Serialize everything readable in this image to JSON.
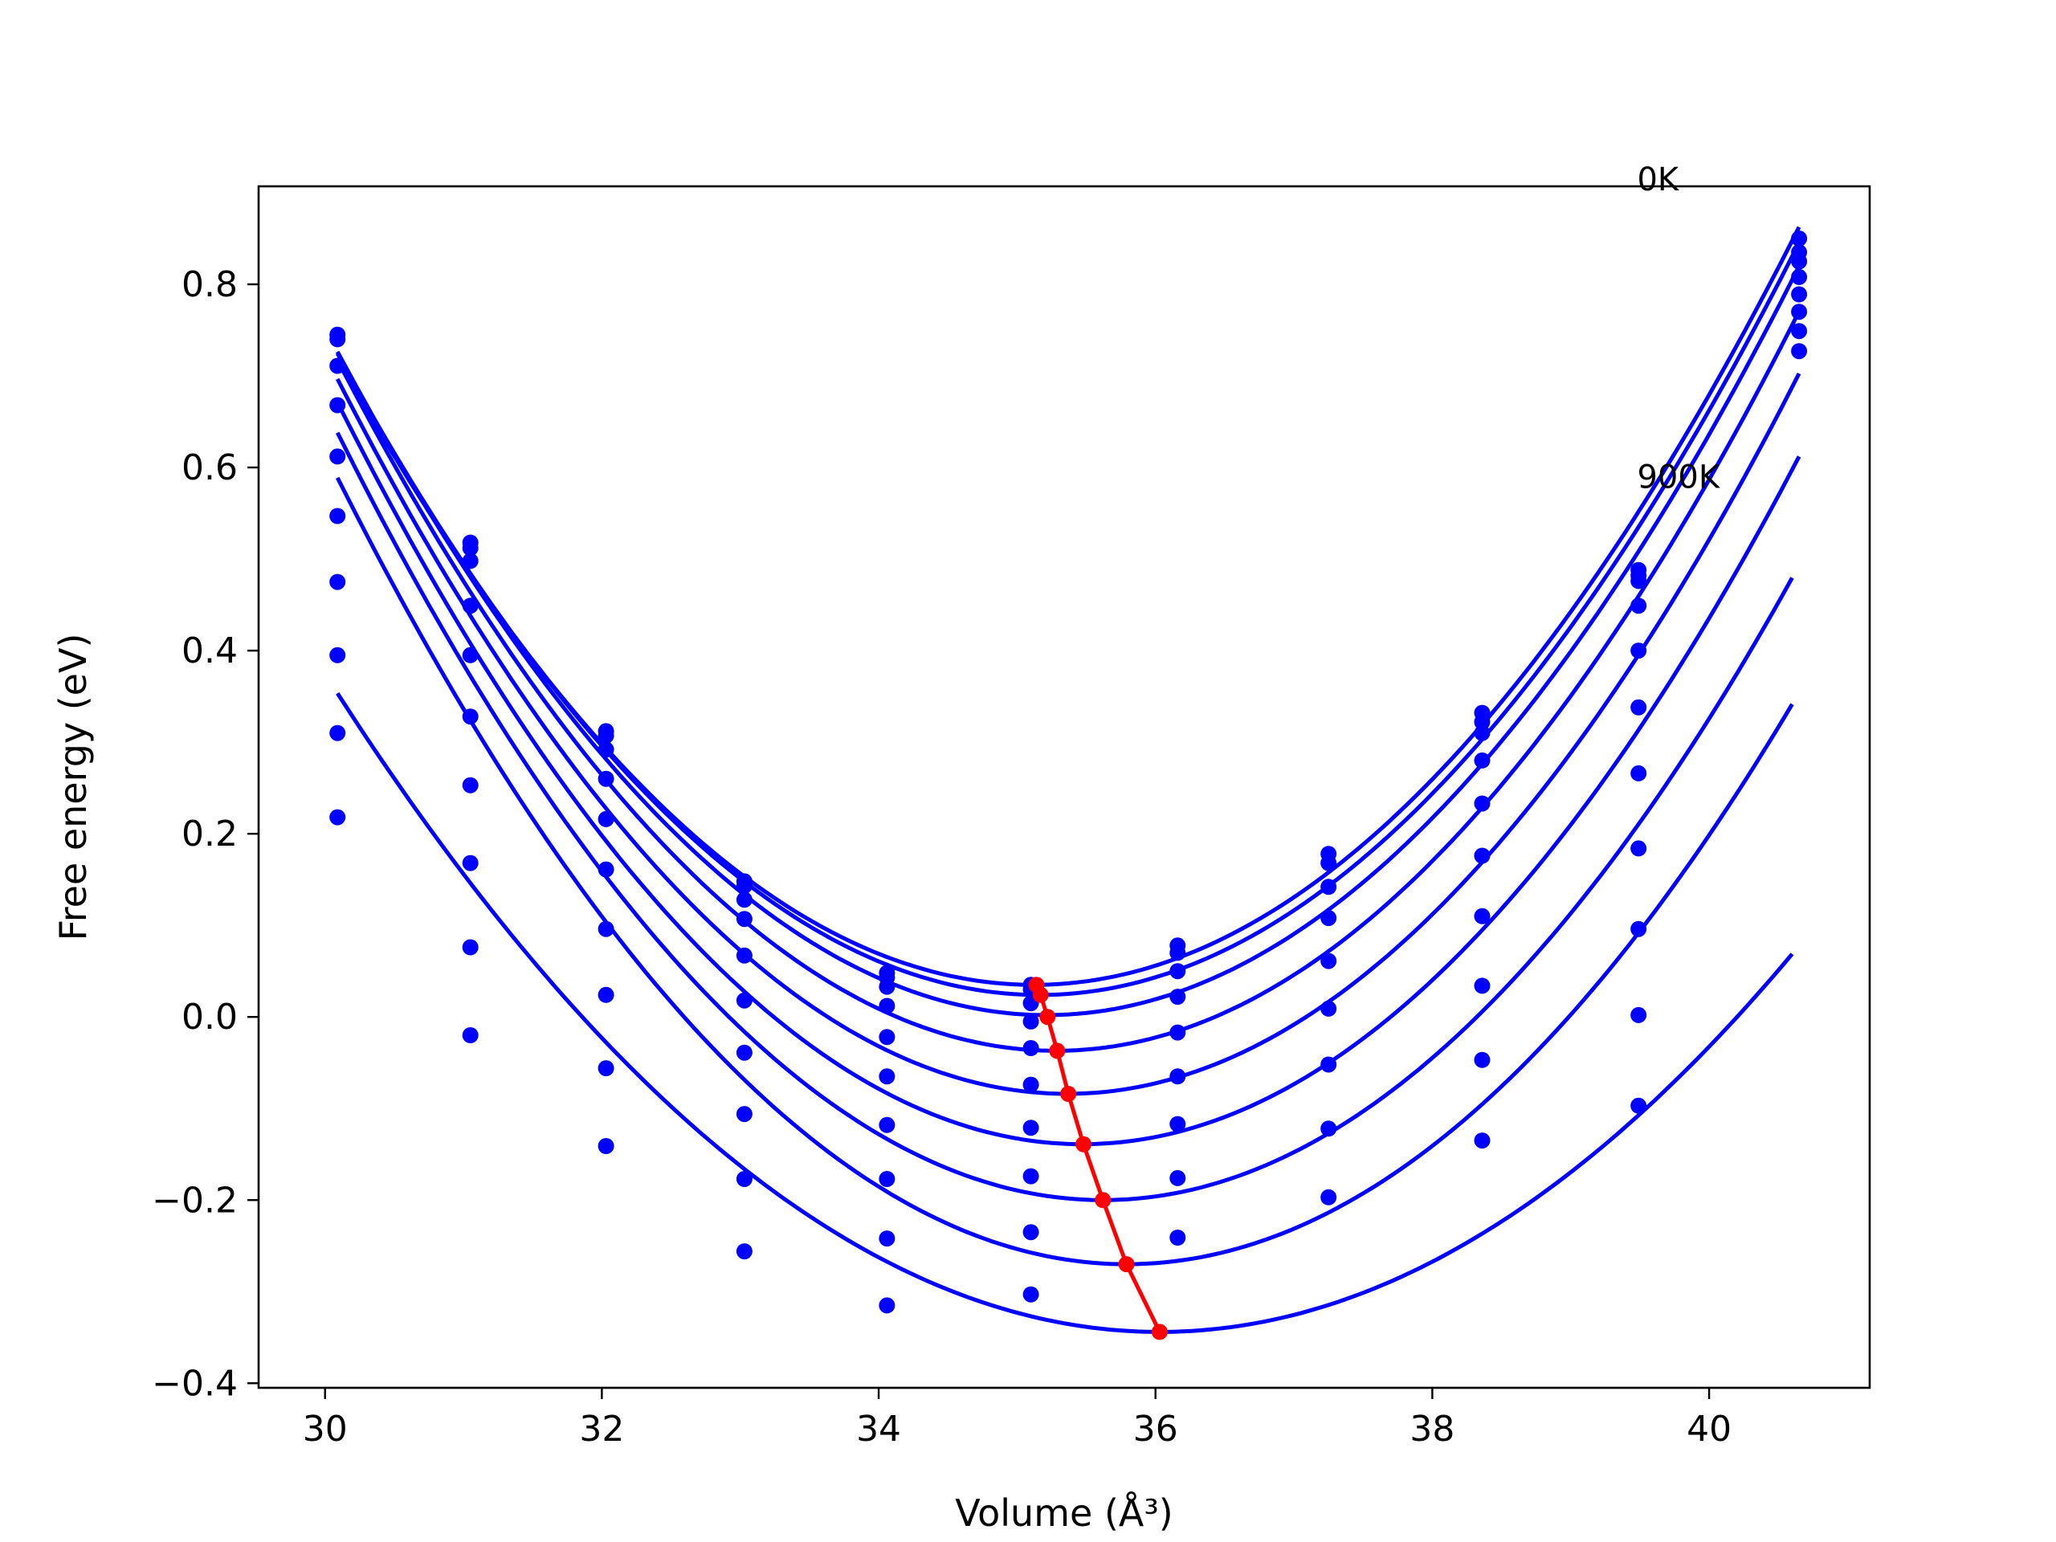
{
  "chart_data": {
    "type": "line",
    "title": "",
    "xlabel": "Volume (Å³)",
    "ylabel": "Free energy (eV)",
    "xlim": [
      29.52,
      41.16
    ],
    "ylim": [
      -0.405,
      0.907
    ],
    "xticks": [
      30,
      32,
      34,
      36,
      38,
      40
    ],
    "yticks": [
      -0.4,
      -0.2,
      0.0,
      0.2,
      0.4,
      0.6,
      0.8
    ],
    "xtick_labels": [
      "30",
      "32",
      "34",
      "36",
      "38",
      "40"
    ],
    "ytick_labels": [
      "−0.4",
      "−0.2",
      "0.0",
      "0.2",
      "0.4",
      "0.6",
      "0.8"
    ],
    "grid": false,
    "legend": "none",
    "annotations": [
      {
        "text": "0K",
        "x": 39.48,
        "y": 0.915
      },
      {
        "text": "900K",
        "x": 39.48,
        "y": 0.59
      }
    ],
    "colors": {
      "fit": "#0000ff",
      "points": "#0000ff",
      "minima": "#ff0000"
    },
    "volumes": [
      30.09,
      31.05,
      32.03,
      33.03,
      34.06,
      35.1,
      36.16,
      37.25,
      38.36,
      39.49,
      40.65
    ],
    "series": [
      {
        "values": [
          0.745,
          0.518,
          0.312,
          0.148,
          0.048,
          0.035,
          0.078,
          0.178,
          0.332,
          0.488,
          0.85
        ]
      },
      {
        "values": [
          0.74,
          0.512,
          0.307,
          0.143,
          0.043,
          0.03,
          0.07,
          0.168,
          0.322,
          0.482,
          0.835
        ]
      },
      {
        "values": [
          0.711,
          0.498,
          0.292,
          0.128,
          0.033,
          0.015,
          0.05,
          0.142,
          0.31,
          0.476,
          0.825
        ]
      },
      {
        "values": [
          0.668,
          0.449,
          0.26,
          0.107,
          0.012,
          -0.005,
          0.022,
          0.108,
          0.28,
          0.449,
          0.808
        ]
      },
      {
        "values": [
          0.612,
          0.395,
          0.216,
          0.067,
          -0.022,
          -0.034,
          -0.017,
          0.061,
          0.233,
          0.4,
          0.789
        ]
      },
      {
        "values": [
          0.547,
          0.328,
          0.161,
          0.018,
          -0.065,
          -0.074,
          -0.065,
          0.009,
          0.176,
          0.338,
          0.77
        ]
      },
      {
        "values": [
          0.475,
          0.253,
          0.096,
          -0.039,
          -0.118,
          -0.121,
          -0.117,
          -0.052,
          0.11,
          0.266,
          0.749
        ]
      },
      {
        "values": [
          0.395,
          0.168,
          0.024,
          -0.106,
          -0.177,
          -0.174,
          -0.176,
          -0.122,
          0.034,
          0.184,
          0.727
        ]
      },
      {
        "values": [
          0.31,
          0.076,
          -0.056,
          -0.177,
          -0.242,
          -0.235,
          -0.241,
          -0.197,
          -0.047,
          0.096,
          null
        ]
      },
      {
        "values": [
          0.218,
          -0.02,
          -0.141,
          -0.256,
          -0.315,
          -0.303,
          null,
          null,
          -0.135,
          0.002,
          null
        ]
      },
      {
        "values": [
          null,
          null,
          null,
          null,
          null,
          null,
          null,
          null,
          null,
          -0.097,
          null
        ]
      }
    ],
    "fit_curves": [
      {
        "v_min": 35.12,
        "f_min": 0.035,
        "x_range": [
          30.09,
          40.65
        ]
      },
      {
        "v_min": 35.16,
        "f_min": 0.024,
        "x_range": [
          30.09,
          40.65
        ]
      },
      {
        "v_min": 35.21,
        "f_min": 0.002,
        "x_range": [
          30.09,
          40.65
        ]
      },
      {
        "v_min": 35.28,
        "f_min": -0.037,
        "x_range": [
          30.09,
          40.65
        ]
      },
      {
        "v_min": 35.36,
        "f_min": -0.084,
        "x_range": [
          30.09,
          40.65
        ]
      },
      {
        "v_min": 35.47,
        "f_min": -0.139,
        "x_range": [
          30.09,
          40.65
        ]
      },
      {
        "v_min": 35.62,
        "f_min": -0.2,
        "x_range": [
          30.09,
          40.6
        ]
      },
      {
        "v_min": 35.79,
        "f_min": -0.27,
        "x_range": [
          30.09,
          40.6
        ]
      },
      {
        "v_min": 36.03,
        "f_min": -0.344,
        "x_range": [
          30.09,
          40.6
        ]
      }
    ],
    "equilibrium": {
      "x": [
        35.14,
        35.17,
        35.22,
        35.29,
        35.37,
        35.48,
        35.62,
        35.79,
        36.03
      ],
      "y": [
        0.035,
        0.024,
        0.0,
        -0.037,
        -0.084,
        -0.139,
        -0.2,
        -0.27,
        -0.344
      ]
    }
  }
}
